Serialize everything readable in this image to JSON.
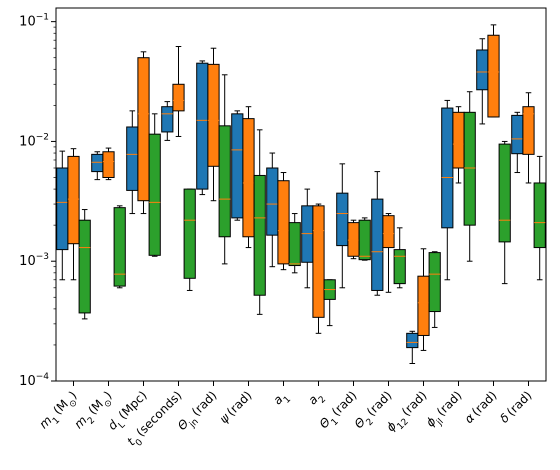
{
  "chart_data": {
    "type": "box",
    "yscale": "log",
    "ylim": [
      0.0001,
      0.13
    ],
    "y_ticks": [
      {
        "value": 0.0001,
        "label": "10^-4"
      },
      {
        "value": 0.001,
        "label": "10^-3"
      },
      {
        "value": 0.01,
        "label": "10^-2"
      },
      {
        "value": 0.1,
        "label": "10^-1"
      }
    ],
    "series_colors": [
      "#1f77b4",
      "#ff7f0e",
      "#2ca02c"
    ],
    "median_color": "#ff7f0e",
    "categories": [
      {
        "main": "m",
        "sub": "1",
        "unit": "(M",
        "unit_sub": "⊙",
        "unit_end": ")"
      },
      {
        "main": "m",
        "sub": "2",
        "unit": "(M",
        "unit_sub": "⊙",
        "unit_end": ")"
      },
      {
        "main": "d",
        "sub": "L",
        "unit": "(Mpc)",
        "unit_sub": "",
        "unit_end": ""
      },
      {
        "main": "t",
        "sub": "0",
        "unit": "(seconds)",
        "unit_sub": "",
        "unit_end": ""
      },
      {
        "main": "Θ",
        "sub": "jn",
        "unit": "(rad)",
        "unit_sub": "",
        "unit_end": ""
      },
      {
        "main": "ψ",
        "sub": "",
        "unit": "(rad)",
        "unit_sub": "",
        "unit_end": ""
      },
      {
        "main": "a",
        "sub": "1",
        "unit": "",
        "unit_sub": "",
        "unit_end": ""
      },
      {
        "main": "a",
        "sub": "2",
        "unit": "",
        "unit_sub": "",
        "unit_end": ""
      },
      {
        "main": "Θ",
        "sub": "1",
        "unit": "(rad)",
        "unit_sub": "",
        "unit_end": ""
      },
      {
        "main": "Θ",
        "sub": "2",
        "unit": "(rad)",
        "unit_sub": "",
        "unit_end": ""
      },
      {
        "main": "ϕ",
        "sub": "12",
        "unit": "(rad)",
        "unit_sub": "",
        "unit_end": ""
      },
      {
        "main": "ϕ",
        "sub": "jl",
        "unit": "(rad)",
        "unit_sub": "",
        "unit_end": ""
      },
      {
        "main": "α",
        "sub": "",
        "unit": "(rad)",
        "unit_sub": "",
        "unit_end": ""
      },
      {
        "main": "δ",
        "sub": "",
        "unit": "(rad)",
        "unit_sub": "",
        "unit_end": ""
      }
    ],
    "series": [
      {
        "boxes": [
          {
            "wlo": 0.0007,
            "q1": 0.00125,
            "med": 0.0031,
            "q3": 0.006,
            "whi": 0.0083
          },
          {
            "wlo": 0.0048,
            "q1": 0.0056,
            "med": 0.0067,
            "q3": 0.0078,
            "whi": 0.0082
          },
          {
            "wlo": 0.0025,
            "q1": 0.0039,
            "med": 0.0078,
            "q3": 0.0132,
            "whi": 0.018
          },
          {
            "wlo": 0.0102,
            "q1": 0.012,
            "med": 0.017,
            "q3": 0.0195,
            "whi": 0.0215
          },
          {
            "wlo": 0.0036,
            "q1": 0.004,
            "med": 0.015,
            "q3": 0.045,
            "whi": 0.047
          },
          {
            "wlo": 0.0022,
            "q1": 0.0023,
            "med": 0.0085,
            "q3": 0.017,
            "whi": 0.018
          },
          {
            "wlo": 0.0009,
            "q1": 0.00165,
            "med": 0.003,
            "q3": 0.006,
            "whi": 0.008
          },
          {
            "wlo": 0.0006,
            "q1": 0.00098,
            "med": 0.0017,
            "q3": 0.0029,
            "whi": 0.004
          },
          {
            "wlo": 0.0006,
            "q1": 0.00135,
            "med": 0.0025,
            "q3": 0.0037,
            "whi": 0.0065
          },
          {
            "wlo": 0.00052,
            "q1": 0.00057,
            "med": 0.0012,
            "q3": 0.0033,
            "whi": 0.0056
          },
          {
            "wlo": 0.00014,
            "q1": 0.00019,
            "med": 0.00021,
            "q3": 0.00025,
            "whi": 0.00026
          },
          {
            "wlo": 0.0007,
            "q1": 0.0019,
            "med": 0.005,
            "q3": 0.019,
            "whi": 0.022
          },
          {
            "wlo": 0.014,
            "q1": 0.027,
            "med": 0.038,
            "q3": 0.058,
            "whi": 0.072
          },
          {
            "wlo": 0.0055,
            "q1": 0.0079,
            "med": 0.0105,
            "q3": 0.0165,
            "whi": 0.0175
          }
        ]
      },
      {
        "boxes": [
          {
            "wlo": 0.0007,
            "q1": 0.0014,
            "med": 0.0033,
            "q3": 0.0075,
            "whi": 0.0087
          },
          {
            "wlo": 0.0048,
            "q1": 0.005,
            "med": 0.0068,
            "q3": 0.0082,
            "whi": 0.0088
          },
          {
            "wlo": 0.0025,
            "q1": 0.0032,
            "med": 0.017,
            "q3": 0.05,
            "whi": 0.056
          },
          {
            "wlo": 0.011,
            "q1": 0.018,
            "med": 0.022,
            "q3": 0.03,
            "whi": 0.062
          },
          {
            "wlo": 0.0032,
            "q1": 0.0062,
            "med": 0.015,
            "q3": 0.044,
            "whi": 0.06
          },
          {
            "wlo": 0.0013,
            "q1": 0.0016,
            "med": 0.0045,
            "q3": 0.0155,
            "whi": 0.0195
          },
          {
            "wlo": 0.00085,
            "q1": 0.00095,
            "med": 0.0018,
            "q3": 0.0047,
            "whi": 0.0055
          },
          {
            "wlo": 0.00025,
            "q1": 0.00034,
            "med": 0.0018,
            "q3": 0.0029,
            "whi": 0.003
          },
          {
            "wlo": 0.00105,
            "q1": 0.0011,
            "med": 0.0015,
            "q3": 0.0021,
            "whi": 0.0022
          },
          {
            "wlo": 0.00055,
            "q1": 0.0013,
            "med": 0.0017,
            "q3": 0.0024,
            "whi": 0.0025
          },
          {
            "wlo": 0.00018,
            "q1": 0.00024,
            "med": 0.00045,
            "q3": 0.00075,
            "whi": 0.00127
          },
          {
            "wlo": 0.0045,
            "q1": 0.006,
            "med": 0.0095,
            "q3": 0.0175,
            "whi": 0.0195
          },
          {
            "wlo": 0.016,
            "q1": 0.016,
            "med": 0.038,
            "q3": 0.077,
            "whi": 0.094
          },
          {
            "wlo": 0.0045,
            "q1": 0.0078,
            "med": 0.017,
            "q3": 0.0195,
            "whi": 0.0255
          }
        ]
      },
      {
        "boxes": [
          {
            "wlo": 0.00033,
            "q1": 0.00037,
            "med": 0.0013,
            "q3": 0.0022,
            "whi": 0.0027
          },
          {
            "wlo": 0.0006,
            "q1": 0.00062,
            "med": 0.00078,
            "q3": 0.0028,
            "whi": 0.0029
          },
          {
            "wlo": 0.0011,
            "q1": 0.00112,
            "med": 0.0031,
            "q3": 0.0115,
            "whi": 0.017
          },
          {
            "wlo": 0.00057,
            "q1": 0.00072,
            "med": 0.0022,
            "q3": 0.004,
            "whi": 0.004
          },
          {
            "wlo": 0.00095,
            "q1": 0.0016,
            "med": 0.0033,
            "q3": 0.0135,
            "whi": 0.036
          },
          {
            "wlo": 0.00036,
            "q1": 0.00052,
            "med": 0.0023,
            "q3": 0.0052,
            "whi": 0.0125
          },
          {
            "wlo": 0.0008,
            "q1": 0.00092,
            "med": 0.00095,
            "q3": 0.0021,
            "whi": 0.0025
          },
          {
            "wlo": 0.00029,
            "q1": 0.00048,
            "med": 0.00058,
            "q3": 0.0007,
            "whi": 0.0007
          },
          {
            "wlo": 0.00102,
            "q1": 0.00103,
            "med": 0.0011,
            "q3": 0.0022,
            "whi": 0.0023
          },
          {
            "wlo": 0.0006,
            "q1": 0.00065,
            "med": 0.0011,
            "q3": 0.00125,
            "whi": 0.0019
          },
          {
            "wlo": 0.00028,
            "q1": 0.00038,
            "med": 0.00078,
            "q3": 0.00118,
            "whi": 0.0012
          },
          {
            "wlo": 0.001,
            "q1": 0.002,
            "med": 0.006,
            "q3": 0.0175,
            "whi": 0.026
          },
          {
            "wlo": 0.00065,
            "q1": 0.00145,
            "med": 0.0022,
            "q3": 0.0095,
            "whi": 0.01
          },
          {
            "wlo": 0.0007,
            "q1": 0.0013,
            "med": 0.0021,
            "q3": 0.0045,
            "whi": 0.0075
          }
        ]
      }
    ]
  }
}
